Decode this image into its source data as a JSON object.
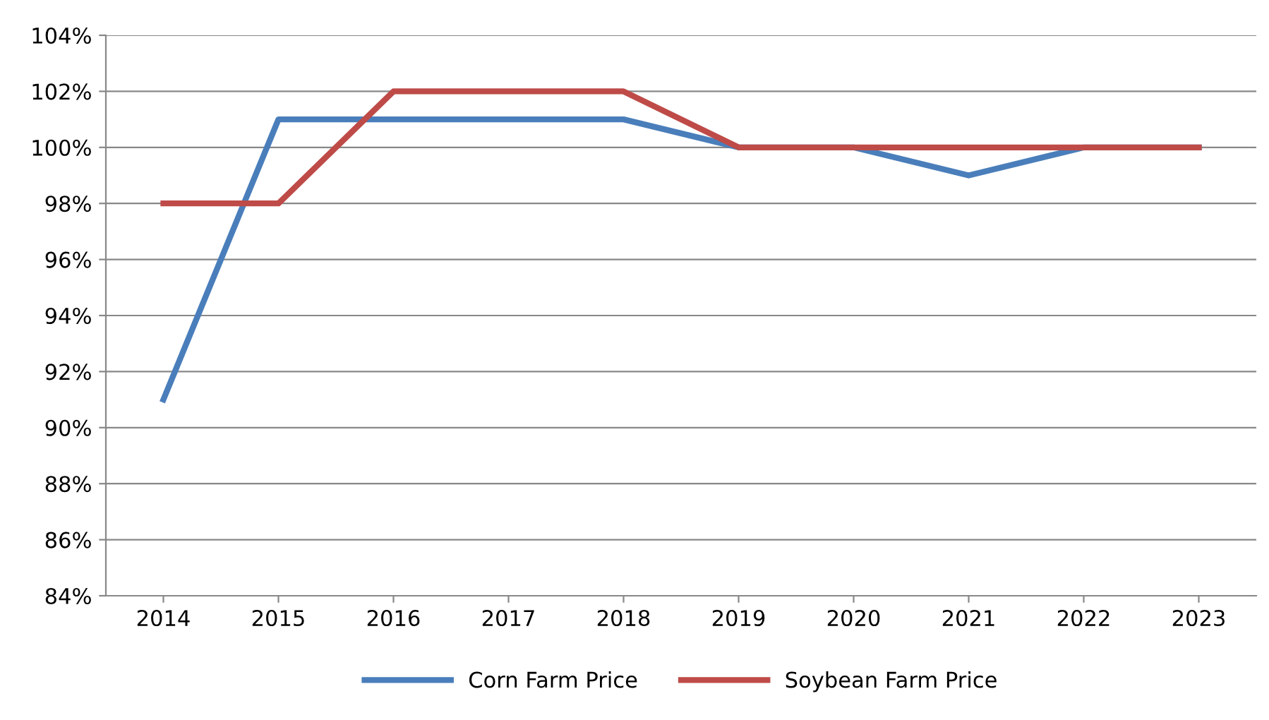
{
  "chart_data": {
    "type": "line",
    "categories": [
      "2014",
      "2015",
      "2016",
      "2017",
      "2018",
      "2019",
      "2020",
      "2021",
      "2022",
      "2023"
    ],
    "series": [
      {
        "name": "Corn Farm Price",
        "color": "#4a7ebb",
        "values": [
          91,
          101,
          101,
          101,
          101,
          100,
          100,
          99,
          100,
          100
        ]
      },
      {
        "name": "Soybean Farm Price",
        "color": "#be4b48",
        "values": [
          98,
          98,
          102,
          102,
          102,
          100,
          100,
          100,
          100,
          100
        ]
      }
    ],
    "ylim": [
      84,
      104
    ],
    "yticks": [
      {
        "value": 84,
        "label": "84%"
      },
      {
        "value": 86,
        "label": "86%"
      },
      {
        "value": 88,
        "label": "88%"
      },
      {
        "value": 90,
        "label": "90%"
      },
      {
        "value": 92,
        "label": "92%"
      },
      {
        "value": 94,
        "label": "94%"
      },
      {
        "value": 96,
        "label": "96%"
      },
      {
        "value": 98,
        "label": "98%"
      },
      {
        "value": 100,
        "label": "100%"
      },
      {
        "value": 102,
        "label": "102%"
      },
      {
        "value": 104,
        "label": "104%"
      }
    ],
    "grid": "y",
    "legend": "bottom",
    "marker": "none",
    "line_style": "solid"
  }
}
